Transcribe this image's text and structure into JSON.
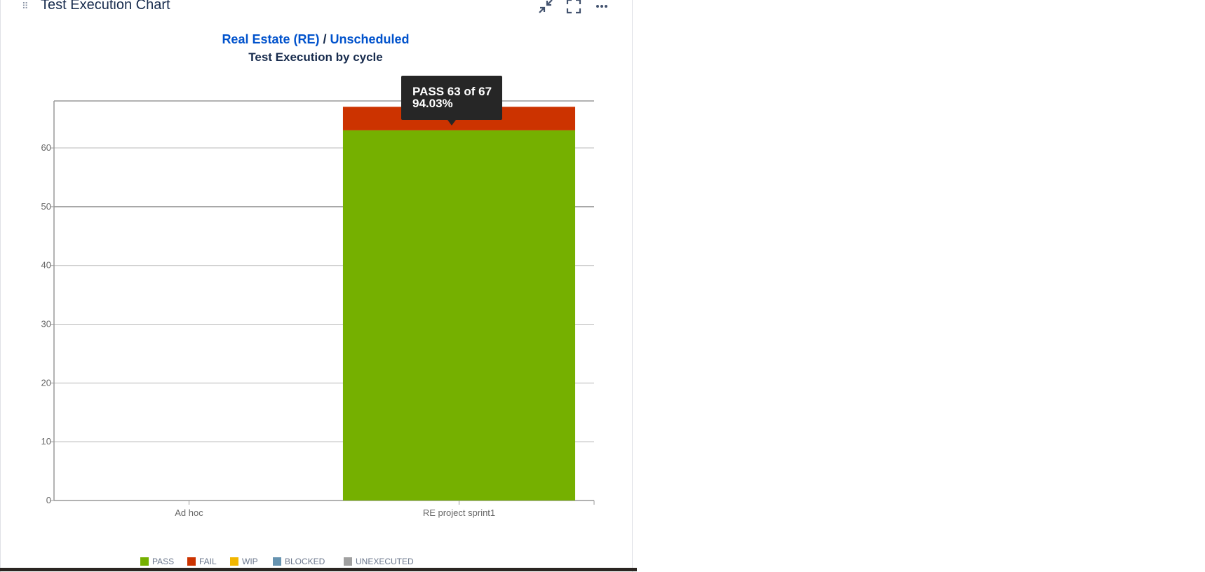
{
  "gadget": {
    "title": "Test Execution Chart"
  },
  "header_actions": {
    "minimize_icon": "collapse-arrows-icon",
    "fullscreen_icon": "fullscreen-icon",
    "more_icon": "more-dots-icon"
  },
  "breadcrumb": {
    "project": "Real Estate (RE)",
    "separator": "/",
    "version": "Unscheduled"
  },
  "tooltip": {
    "line1": "PASS 63 of 67",
    "line2": "94.03%"
  },
  "colors": {
    "pass": "#75b000",
    "fail": "#cc3300",
    "wip": "#f2b600",
    "blocked": "#6693b0",
    "unexecuted": "#a0a0a0"
  },
  "chart_data": {
    "type": "bar",
    "stacked": true,
    "title": "Test Execution by cycle",
    "categories": [
      "Ad hoc",
      "RE project sprint1"
    ],
    "series": [
      {
        "name": "PASS",
        "values": [
          0,
          63
        ]
      },
      {
        "name": "FAIL",
        "values": [
          0,
          4
        ]
      },
      {
        "name": "WIP",
        "values": [
          0,
          0
        ]
      },
      {
        "name": "BLOCKED",
        "values": [
          0,
          0
        ]
      },
      {
        "name": "UNEXECUTED",
        "values": [
          0,
          0
        ]
      }
    ],
    "yticks": [
      0,
      10,
      20,
      30,
      40,
      50,
      60
    ],
    "ylim": [
      0,
      68
    ],
    "xlabel": "",
    "ylabel": "",
    "grid": true,
    "legend": "bottom"
  }
}
